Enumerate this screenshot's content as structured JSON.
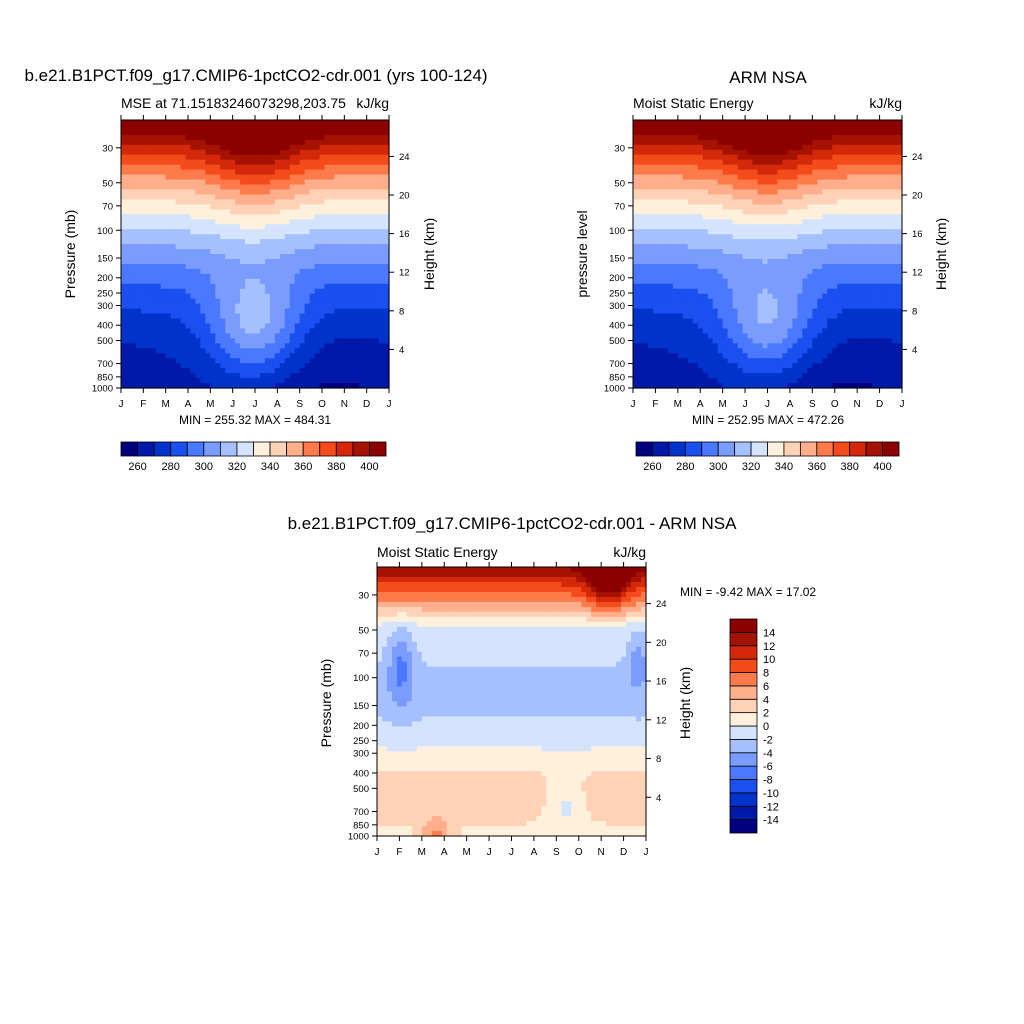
{
  "chart_data": [
    {
      "type": "heatmap",
      "id": "model",
      "title": "b.e21.B1PCT.f09_g17.CMIP6-1pctCO2-cdr.001 (yrs 100-124)",
      "left_label": "MSE at 71.15183246073298,203.75",
      "right_label": "kJ/kg",
      "ylabel": "Pressure (mb)",
      "ylabel_right": "Height (km)",
      "x_ticks": [
        "J",
        "F",
        "M",
        "A",
        "M",
        "J",
        "J",
        "A",
        "S",
        "O",
        "N",
        "D",
        "J"
      ],
      "p_ticks": [
        30,
        50,
        70,
        100,
        150,
        200,
        250,
        300,
        400,
        500,
        700,
        850,
        1000
      ],
      "height_ticks": [
        24,
        20,
        16,
        12,
        8,
        4
      ],
      "stats": "MIN = 255.32 MAX = 484.31",
      "levels": [
        260,
        270,
        280,
        290,
        300,
        310,
        320,
        330,
        340,
        350,
        360,
        370,
        380,
        390,
        400
      ],
      "levels_labels": [
        "260",
        "280",
        "300",
        "320",
        "340",
        "360",
        "380",
        "400"
      ],
      "min": 255.32,
      "max": 484.31,
      "seasonal_amp": 1.0
    },
    {
      "type": "heatmap",
      "id": "obs",
      "title": "ARM NSA",
      "left_label": "Moist Static Energy",
      "right_label": "kJ/kg",
      "ylabel": "pressure level",
      "ylabel_right": "Height (km)",
      "x_ticks": [
        "J",
        "F",
        "M",
        "A",
        "M",
        "J",
        "J",
        "A",
        "S",
        "O",
        "N",
        "D",
        "J"
      ],
      "p_ticks": [
        30,
        50,
        70,
        100,
        150,
        200,
        250,
        300,
        400,
        500,
        700,
        850,
        1000
      ],
      "height_ticks": [
        24,
        20,
        16,
        12,
        8,
        4
      ],
      "stats": "MIN = 252.95 MAX = 472.26",
      "levels": [
        260,
        270,
        280,
        290,
        300,
        310,
        320,
        330,
        340,
        350,
        360,
        370,
        380,
        390,
        400
      ],
      "levels_labels": [
        "260",
        "280",
        "300",
        "320",
        "340",
        "360",
        "380",
        "400"
      ],
      "min": 252.95,
      "max": 472.26,
      "seasonal_amp": 0.92
    },
    {
      "type": "heatmap",
      "id": "diff",
      "title": "b.e21.B1PCT.f09_g17.CMIP6-1pctCO2-cdr.001 - ARM NSA",
      "left_label": "Moist Static Energy",
      "right_label": "kJ/kg",
      "ylabel": "Pressure (mb)",
      "ylabel_right": "Height (km)",
      "x_ticks": [
        "J",
        "F",
        "M",
        "A",
        "M",
        "J",
        "J",
        "A",
        "S",
        "O",
        "N",
        "D",
        "J"
      ],
      "p_ticks": [
        30,
        50,
        70,
        100,
        150,
        200,
        250,
        300,
        400,
        500,
        700,
        850,
        1000
      ],
      "height_ticks": [
        24,
        20,
        16,
        12,
        8,
        4
      ],
      "stats": "MIN =  -9.42 MAX =  17.02",
      "levels": [
        -14,
        -12,
        -10,
        -8,
        -6,
        -4,
        -2,
        0,
        2,
        4,
        6,
        8,
        10,
        12,
        14
      ],
      "levels_labels": [
        "-14",
        "-12",
        "-10",
        "-8",
        "-6",
        "-4",
        "-2",
        "0",
        "2",
        "4",
        "6",
        "8",
        "10",
        "12",
        "14"
      ],
      "min": -9.42,
      "max": 17.02
    }
  ],
  "colors": {
    "palette": [
      "#00007f",
      "#0019a8",
      "#0033cc",
      "#1a4ff0",
      "#4a78ff",
      "#7a9cff",
      "#a6c0ff",
      "#d4e4ff",
      "#fff0dc",
      "#ffd2b8",
      "#ffae8c",
      "#ff7a4a",
      "#f54a1a",
      "#d4280a",
      "#a61200",
      "#8c0000"
    ]
  }
}
